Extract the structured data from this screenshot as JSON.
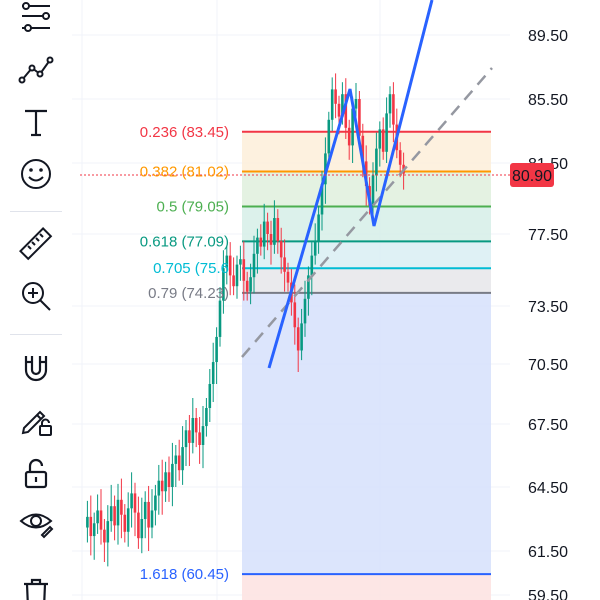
{
  "toolbar": {
    "tools": [
      {
        "name": "trend-line-tools-icon"
      },
      {
        "name": "patterns-icon"
      },
      {
        "name": "text-tool-icon"
      },
      {
        "name": "emoji-icon"
      },
      {
        "name": "measure-ruler-icon"
      },
      {
        "name": "zoom-in-icon"
      },
      {
        "name": "magnet-icon"
      },
      {
        "name": "lock-drawing-icon"
      },
      {
        "name": "lock-all-icon"
      },
      {
        "name": "hide-drawings-icon"
      },
      {
        "name": "trash-icon"
      }
    ]
  },
  "price_axis": {
    "ticks": [
      "89.50",
      "85.50",
      "81.50",
      "77.50",
      "73.50",
      "70.50",
      "67.50",
      "64.50",
      "61.50",
      "59.50"
    ],
    "tick_values": [
      89.5,
      85.5,
      81.5,
      77.5,
      73.5,
      70.5,
      67.5,
      64.5,
      61.5,
      59.5
    ],
    "current_price": "80.90",
    "current_price_value": 80.9,
    "current_price_color": "#f23645"
  },
  "fibonacci": {
    "levels": [
      {
        "label": "0.236 (83.45)",
        "value": 83.45,
        "color": "#f23645",
        "fill": "#fde2e1"
      },
      {
        "label": "0.382 (81.02)",
        "value": 81.02,
        "color": "#ff9800",
        "fill": "#fdefd9"
      },
      {
        "label": "0.5 (79.05)",
        "value": 79.05,
        "color": "#4caf50",
        "fill": "#dff0dd"
      },
      {
        "label": "0.618 (77.09)",
        "value": 77.09,
        "color": "#089981",
        "fill": "#d6efe8"
      },
      {
        "label": "0.705 (75.6",
        "value": 75.6,
        "color": "#00bcd4",
        "fill": "#d9eef3"
      },
      {
        "label": "0.79 (74.23)",
        "value": 74.23,
        "color": "#787b86",
        "fill": "#e6e6ea"
      },
      {
        "label": "1.618 (60.45)",
        "value": 60.45,
        "color": "#2962ff",
        "fill": "#d6e0fc"
      }
    ],
    "below_fill": "#fde2e1"
  },
  "colors": {
    "up": "#089981",
    "down": "#f23645",
    "trend_line": "#2962ff",
    "dashed_line": "#9598a1",
    "grid": "#f0f3fa"
  }
}
